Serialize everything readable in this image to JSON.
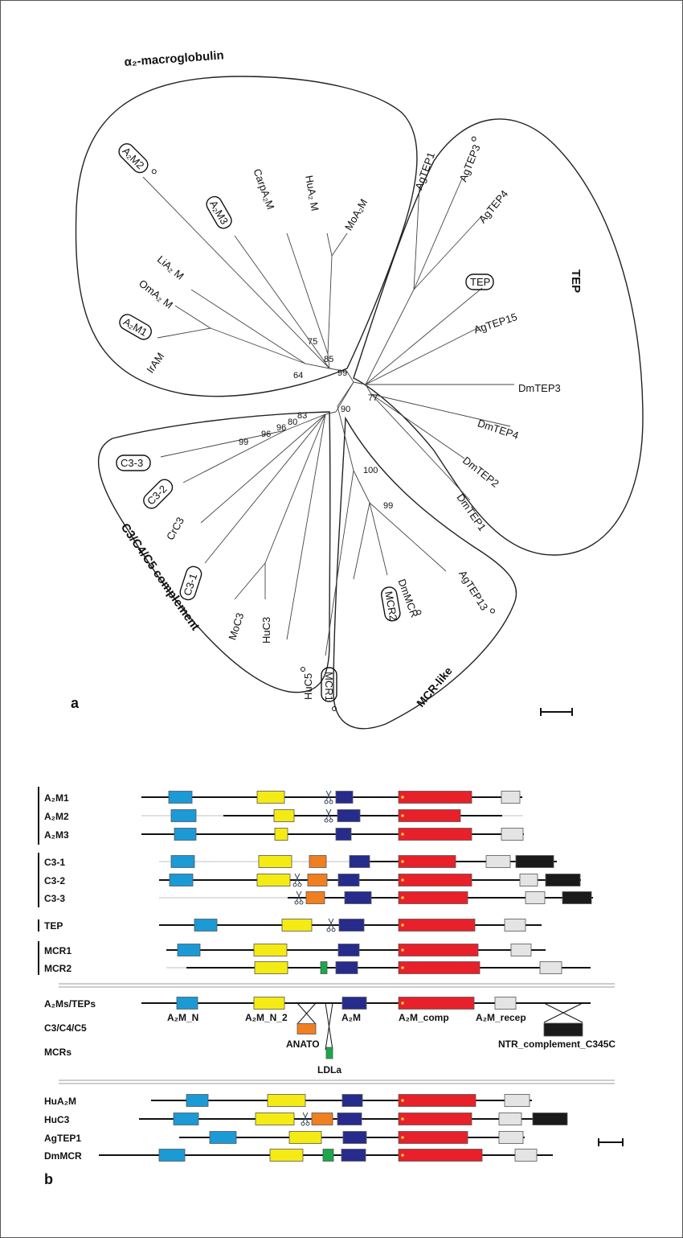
{
  "panel_a": {
    "label": "a",
    "groups": [
      {
        "id": "a2m",
        "label": "α₂-macroglobulin"
      },
      {
        "id": "tep",
        "label": "TEP"
      },
      {
        "id": "c3",
        "label": "C3/C4/C5 complement"
      },
      {
        "id": "mcr",
        "label": "MCR-like"
      }
    ],
    "leaves": [
      {
        "id": "A2M2",
        "label": "A₂M2",
        "boxed": true,
        "marker": true
      },
      {
        "id": "A2M3",
        "label": "A₂M3",
        "boxed": true,
        "marker": false
      },
      {
        "id": "CarpA2M",
        "label": "CarpA₂M",
        "boxed": false,
        "marker": false
      },
      {
        "id": "HuA2M",
        "label": "HuA₂ M",
        "boxed": false,
        "marker": false
      },
      {
        "id": "MoA2M",
        "label": "MoA₂M",
        "boxed": false,
        "marker": false
      },
      {
        "id": "LiA2M",
        "label": "LiA₂ M",
        "boxed": false,
        "marker": false
      },
      {
        "id": "OmA2M",
        "label": "OmA₂ M",
        "boxed": false,
        "marker": false
      },
      {
        "id": "A2M1",
        "label": "A₂M1",
        "boxed": true,
        "marker": false
      },
      {
        "id": "IrAM",
        "label": "IrAM",
        "boxed": false,
        "marker": false
      },
      {
        "id": "AgTEP1",
        "label": "AgTEP1",
        "boxed": false,
        "marker": false
      },
      {
        "id": "AgTEP3",
        "label": "AgTEP3",
        "boxed": false,
        "marker": true
      },
      {
        "id": "AgTEP4",
        "label": "AgTEP4",
        "boxed": false,
        "marker": false
      },
      {
        "id": "TEP",
        "label": "TEP",
        "boxed": true,
        "marker": false
      },
      {
        "id": "AgTEP15",
        "label": "AgTEP15",
        "boxed": false,
        "marker": false
      },
      {
        "id": "DmTEP3",
        "label": "DmTEP3",
        "boxed": false,
        "marker": false
      },
      {
        "id": "DmTEP4",
        "label": "DmTEP4",
        "boxed": false,
        "marker": false
      },
      {
        "id": "DmTEP2",
        "label": "DmTEP2",
        "boxed": false,
        "marker": false
      },
      {
        "id": "DmTEP1",
        "label": "DmTEP1",
        "boxed": false,
        "marker": false
      },
      {
        "id": "C3-3",
        "label": "C3-3",
        "boxed": true,
        "marker": false
      },
      {
        "id": "C3-2",
        "label": "C3-2",
        "boxed": true,
        "marker": false
      },
      {
        "id": "CrC3",
        "label": "CrC3",
        "boxed": false,
        "marker": false
      },
      {
        "id": "C3-1",
        "label": "C3-1",
        "boxed": true,
        "marker": false
      },
      {
        "id": "MoC3",
        "label": "MoC3",
        "boxed": false,
        "marker": false
      },
      {
        "id": "HuC3",
        "label": "HuC3",
        "boxed": false,
        "marker": false
      },
      {
        "id": "HuC5",
        "label": "HuC5",
        "boxed": false,
        "marker": true
      },
      {
        "id": "MCR2",
        "label": "MCR2",
        "boxed": true,
        "marker": false
      },
      {
        "id": "DmMCR",
        "label": "DmMCR",
        "boxed": false,
        "marker": true
      },
      {
        "id": "AgTEP13",
        "label": "AgTEP13",
        "boxed": false,
        "marker": true
      },
      {
        "id": "MCR1",
        "label": "MCR1",
        "boxed": true,
        "marker": true
      }
    ],
    "bootstrap": [
      "75",
      "85",
      "64",
      "99",
      "77",
      "90",
      "83",
      "80",
      "96",
      "96",
      "99",
      "100",
      "99"
    ]
  },
  "panel_b": {
    "label": "b",
    "colors": {
      "A2M_N": "#1b9ad6",
      "A2M_N_2": "#f5eb14",
      "ANATO": "#f07f22",
      "A2M": "#262b8c",
      "A2M_comp": "#e8202a",
      "A2M_recep": "#e4e4e4",
      "NTR": "#1a1a1a",
      "LDLa": "#1aa84b"
    },
    "rows": [
      {
        "label": "A₂M1",
        "domains": [
          "A2M_N",
          "A2M_N_2",
          "cleavage",
          "A2M",
          "A2M_comp",
          "A2M_recep"
        ]
      },
      {
        "label": "A₂M2",
        "domains": [
          "A2M_N",
          "A2M_N_2",
          "cleavage",
          "A2M",
          "A2M_comp"
        ]
      },
      {
        "label": "A₂M3",
        "domains": [
          "A2M_N",
          "A2M_N_2",
          "A2M",
          "A2M_comp",
          "A2M_recep"
        ]
      },
      {
        "label": "C3-1",
        "domains": [
          "A2M_N",
          "A2M_N_2",
          "ANATO",
          "A2M",
          "A2M_comp",
          "A2M_recep",
          "NTR"
        ]
      },
      {
        "label": "C3-2",
        "domains": [
          "A2M_N",
          "A2M_N_2",
          "cleavage",
          "ANATO",
          "A2M",
          "A2M_comp",
          "A2M_recep",
          "NTR"
        ]
      },
      {
        "label": "C3-3",
        "domains": [
          "cleavage",
          "ANATO",
          "A2M",
          "A2M_comp",
          "A2M_recep",
          "NTR"
        ]
      },
      {
        "label": "TEP",
        "domains": [
          "A2M_N",
          "A2M_N_2",
          "cleavage",
          "A2M",
          "A2M_comp",
          "A2M_recep"
        ]
      },
      {
        "label": "MCR1",
        "domains": [
          "A2M_N",
          "A2M_N_2",
          "A2M",
          "A2M_comp",
          "A2M_recep"
        ]
      },
      {
        "label": "MCR2",
        "domains": [
          "A2M_N_2",
          "LDLa",
          "A2M",
          "A2M_comp",
          "A2M_recep"
        ]
      }
    ],
    "legend": {
      "row_labels": [
        "A₂Ms/TEPs",
        "C3/C4/C5",
        "MCRs"
      ],
      "domain_labels": [
        "A₂M_N",
        "A₂M_N_2",
        "A₂M",
        "A₂M_comp",
        "A₂M_recep",
        "ANATO",
        "LDLa",
        "NTR_complement_C345C"
      ]
    },
    "comparison_rows": [
      {
        "label": "HuA₂M",
        "domains": [
          "A2M_N",
          "A2M_N_2",
          "A2M",
          "A2M_comp",
          "A2M_recep"
        ]
      },
      {
        "label": "HuC3",
        "domains": [
          "A2M_N",
          "A2M_N_2",
          "cleavage",
          "ANATO",
          "A2M",
          "A2M_comp",
          "A2M_recep",
          "NTR"
        ]
      },
      {
        "label": "AgTEP1",
        "domains": [
          "A2M_N",
          "A2M_N_2",
          "A2M",
          "A2M_comp",
          "A2M_recep"
        ]
      },
      {
        "label": "DmMCR",
        "domains": [
          "A2M_N",
          "A2M_N_2",
          "LDLa",
          "A2M",
          "A2M_comp",
          "A2M_recep"
        ]
      }
    ]
  }
}
